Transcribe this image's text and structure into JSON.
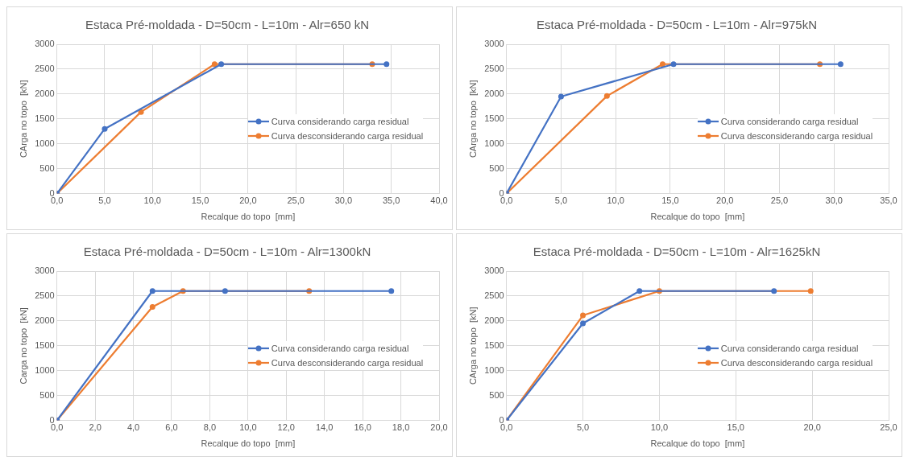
{
  "chart_data": [
    {
      "type": "line",
      "title": "Estaca Pré-moldada - D=50cm - L=10m - Alr=650 kN",
      "xlabel": "Recalque do topo  [mm]",
      "ylabel": "CArga no topo  [kN]",
      "xlim": [
        0,
        40
      ],
      "xticks": [
        {
          "value": 0,
          "label": "0,0"
        },
        {
          "value": 5,
          "label": "5,0"
        },
        {
          "value": 10,
          "label": "10,0"
        },
        {
          "value": 15,
          "label": "15,0"
        },
        {
          "value": 20,
          "label": "20,0"
        },
        {
          "value": 25,
          "label": "25,0"
        },
        {
          "value": 30,
          "label": "30,0"
        },
        {
          "value": 35,
          "label": "35,0"
        },
        {
          "value": 40,
          "label": "40,0"
        }
      ],
      "ylim": [
        0,
        3000
      ],
      "yticks": [
        0,
        500,
        1000,
        1500,
        2000,
        2500,
        3000
      ],
      "grid": true,
      "legend": "right",
      "marker": "circle",
      "series": [
        {
          "name": "Curva considerando carga residual",
          "color": "#4472c4",
          "x": [
            0,
            5,
            17.2,
            34.5
          ],
          "values": [
            0,
            1300,
            2600,
            2600
          ]
        },
        {
          "name": "Curva desconsiderando carga residual",
          "color": "#ed7d31",
          "x": [
            0,
            8.8,
            16.5,
            33
          ],
          "values": [
            0,
            1640,
            2600,
            2600
          ]
        }
      ]
    },
    {
      "type": "line",
      "title": "Estaca Pré-moldada - D=50cm - L=10m - Alr=975kN",
      "xlabel": "Recalque do topo  [mm]",
      "ylabel": "CArga no topo  [kN]",
      "xlim": [
        0,
        35
      ],
      "xticks": [
        {
          "value": 0,
          "label": "0,0"
        },
        {
          "value": 5,
          "label": "5,0"
        },
        {
          "value": 10,
          "label": "10,0"
        },
        {
          "value": 15,
          "label": "15,0"
        },
        {
          "value": 20,
          "label": "20,0"
        },
        {
          "value": 25,
          "label": "25,0"
        },
        {
          "value": 30,
          "label": "30,0"
        },
        {
          "value": 35,
          "label": "35,0"
        }
      ],
      "ylim": [
        0,
        3000
      ],
      "yticks": [
        0,
        500,
        1000,
        1500,
        2000,
        2500,
        3000
      ],
      "grid": true,
      "legend": "right",
      "marker": "circle",
      "series": [
        {
          "name": "Curva considerando carga residual",
          "color": "#4472c4",
          "x": [
            0,
            5,
            15.3,
            30.6
          ],
          "values": [
            0,
            1950,
            2600,
            2600
          ]
        },
        {
          "name": "Curva desconsiderando carga residual",
          "color": "#ed7d31",
          "x": [
            0,
            9.2,
            14.3,
            28.7
          ],
          "values": [
            0,
            1960,
            2600,
            2600
          ]
        }
      ]
    },
    {
      "type": "line",
      "title": "Estaca Pré-moldada - D=50cm - L=10m - Alr=1300kN",
      "xlabel": "Recalque do topo  [mm]",
      "ylabel": "Carga no topo  [kN]",
      "xlim": [
        0,
        20
      ],
      "xticks": [
        {
          "value": 0,
          "label": "0,0"
        },
        {
          "value": 2,
          "label": "2,0"
        },
        {
          "value": 4,
          "label": "4,0"
        },
        {
          "value": 6,
          "label": "6,0"
        },
        {
          "value": 8,
          "label": "8,0"
        },
        {
          "value": 10,
          "label": "10,0"
        },
        {
          "value": 12,
          "label": "12,0"
        },
        {
          "value": 14,
          "label": "14,0"
        },
        {
          "value": 16,
          "label": "16,0"
        },
        {
          "value": 18,
          "label": "18,0"
        },
        {
          "value": 20,
          "label": "20,0"
        }
      ],
      "ylim": [
        0,
        3000
      ],
      "yticks": [
        0,
        500,
        1000,
        1500,
        2000,
        2500,
        3000
      ],
      "grid": true,
      "legend": "right",
      "marker": "circle",
      "series": [
        {
          "name": "Curva considerando carga residual",
          "color": "#4472c4",
          "x": [
            0,
            5,
            8.8,
            17.5
          ],
          "values": [
            0,
            2600,
            2600,
            2600
          ]
        },
        {
          "name": "Curva desconsiderando carga residual",
          "color": "#ed7d31",
          "x": [
            0,
            5,
            6.6,
            13.2
          ],
          "values": [
            0,
            2280,
            2600,
            2600
          ]
        }
      ]
    },
    {
      "type": "line",
      "title": "Estaca Pré-moldada - D=50cm - L=10m - Alr=1625kN",
      "xlabel": "Recalque do topo  [mm]",
      "ylabel": "CArga no topo  [kN]",
      "xlim": [
        0,
        25
      ],
      "xticks": [
        {
          "value": 0,
          "label": "0,0"
        },
        {
          "value": 5,
          "label": "5,0"
        },
        {
          "value": 10,
          "label": "10,0"
        },
        {
          "value": 15,
          "label": "15,0"
        },
        {
          "value": 20,
          "label": "20,0"
        },
        {
          "value": 25,
          "label": "25,0"
        }
      ],
      "ylim": [
        0,
        3000
      ],
      "yticks": [
        0,
        500,
        1000,
        1500,
        2000,
        2500,
        3000
      ],
      "grid": true,
      "legend": "right",
      "marker": "circle",
      "series": [
        {
          "name": "Curva considerando carga residual",
          "color": "#4472c4",
          "x": [
            0,
            5,
            8.7,
            17.5
          ],
          "values": [
            0,
            1950,
            2600,
            2600
          ]
        },
        {
          "name": "Curva desconsiderando carga residual",
          "color": "#ed7d31",
          "x": [
            0,
            5,
            10,
            19.9
          ],
          "values": [
            0,
            2110,
            2600,
            2600
          ]
        }
      ]
    }
  ]
}
